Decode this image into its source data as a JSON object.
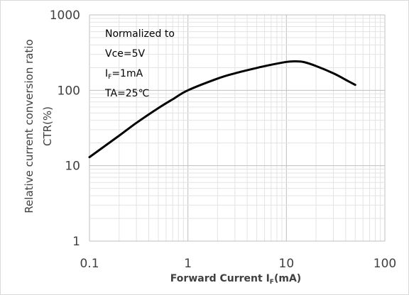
{
  "chart_data": {
    "type": "line",
    "x_scale": "log",
    "y_scale": "log",
    "xlim": [
      0.1,
      100
    ],
    "ylim": [
      1,
      1000
    ],
    "x_ticks": [
      "0.1",
      "1",
      "10",
      "100"
    ],
    "y_ticks": [
      "1",
      "10",
      "100",
      "1000"
    ],
    "xlabel": {
      "main": "Forward Current I",
      "sub": "F",
      "unit": "(mA)"
    },
    "ylabel_line1": "Relative current conversion ratio",
    "ylabel_line2": "CTR(%)",
    "grid": true,
    "annotations": [
      {
        "text": "Normalized to"
      },
      {
        "text": "Vce=5V"
      },
      {
        "text": "I",
        "sub": "F",
        "rest": "=1mA"
      },
      {
        "text": "TA=25℃"
      }
    ],
    "series": [
      {
        "color": "#000000",
        "x": [
          0.1,
          0.2,
          0.3,
          0.5,
          0.7,
          1,
          2,
          3,
          5,
          7,
          10,
          12,
          15,
          20,
          30,
          40,
          50
        ],
        "y": [
          13,
          25,
          37,
          58,
          76,
          100,
          143,
          168,
          198,
          218,
          238,
          242,
          237,
          210,
          168,
          138,
          118
        ]
      }
    ]
  }
}
